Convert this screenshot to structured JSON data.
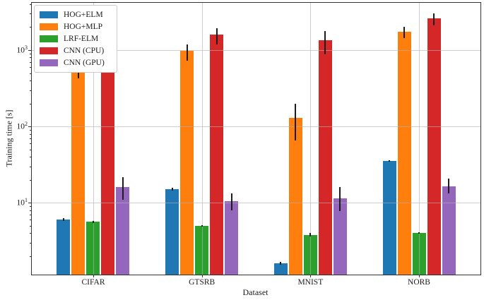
{
  "chart_data": {
    "type": "bar",
    "title": "",
    "xlabel": "Dataset",
    "ylabel": "Training time [s]",
    "yscale": "log",
    "ylim": [
      1.14,
      4170
    ],
    "grid": true,
    "legend_position": "upper left",
    "categories": [
      "CIFAR",
      "GTSRB",
      "MNIST",
      "NORB"
    ],
    "y_ticks": [
      {
        "base": "10",
        "exp": "1",
        "value": 10
      },
      {
        "base": "10",
        "exp": "2",
        "value": 100
      },
      {
        "base": "10",
        "exp": "3",
        "value": 1000
      }
    ],
    "series": [
      {
        "name": "HOG+ELM",
        "color": "#1f77b4",
        "values": [
          6.0,
          15.0,
          1.6,
          35.0
        ],
        "errors": [
          [
            5.7,
            6.3
          ],
          [
            14.4,
            15.6
          ],
          [
            1.52,
            1.68
          ],
          [
            34.2,
            35.8
          ]
        ]
      },
      {
        "name": "HOG+MLP",
        "color": "#ff7f0e",
        "values": [
          510,
          980,
          130,
          1750
        ],
        "errors": [
          [
            430,
            730
          ],
          [
            730,
            1180
          ],
          [
            66,
            198
          ],
          [
            1440,
            2030
          ]
        ]
      },
      {
        "name": "LRF-ELM",
        "color": "#2ca02c",
        "values": [
          5.6,
          5.0,
          3.8,
          4.0
        ],
        "errors": [
          [
            5.45,
            5.75
          ],
          [
            4.9,
            5.1
          ],
          [
            3.6,
            4.0
          ],
          [
            3.9,
            4.1
          ]
        ]
      },
      {
        "name": "CNN (CPU)",
        "color": "#d62728",
        "values": [
          2200,
          1600,
          1350,
          2600
        ],
        "errors": [
          [
            1600,
            2900
          ],
          [
            1180,
            1940
          ],
          [
            880,
            1780
          ],
          [
            2100,
            3000
          ]
        ]
      },
      {
        "name": "CNN (GPU)",
        "color": "#9467bd",
        "values": [
          16.0,
          10.5,
          11.5,
          16.5
        ],
        "errors": [
          [
            11.0,
            21.5
          ],
          [
            8.0,
            13.2
          ],
          [
            7.8,
            16.0
          ],
          [
            13.2,
            20.6
          ]
        ]
      }
    ]
  }
}
